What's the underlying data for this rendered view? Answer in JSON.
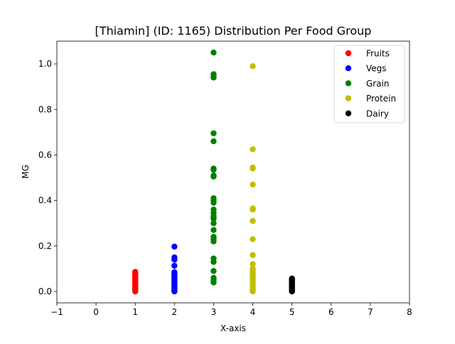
{
  "chart_data": {
    "type": "scatter",
    "title": "[Thiamin] (ID: 1165) Distribution Per Food Group",
    "xlabel": "X-axis",
    "ylabel": "MG",
    "xlim": [
      -1,
      8
    ],
    "ylim": [
      -0.05,
      1.1
    ],
    "x_ticks": [
      "−1",
      "0",
      "1",
      "2",
      "3",
      "4",
      "5",
      "6",
      "7",
      "8"
    ],
    "y_ticks": [
      "0.0",
      "0.2",
      "0.4",
      "0.6",
      "0.8",
      "1.0"
    ],
    "grid": false,
    "legend_position": "top-right",
    "series": [
      {
        "name": "Fruits",
        "color": "#ff0000",
        "x": 1,
        "values": [
          0.0,
          0.003,
          0.006,
          0.01,
          0.013,
          0.016,
          0.02,
          0.023,
          0.027,
          0.03,
          0.034,
          0.037,
          0.04,
          0.044,
          0.048,
          0.051,
          0.055,
          0.058,
          0.062,
          0.066,
          0.07,
          0.074,
          0.078,
          0.082,
          0.086
        ]
      },
      {
        "name": "Vegs",
        "color": "#0000ff",
        "x": 2,
        "values": [
          0.0,
          0.003,
          0.007,
          0.012,
          0.018,
          0.025,
          0.03,
          0.035,
          0.04,
          0.045,
          0.05,
          0.055,
          0.06,
          0.066,
          0.072,
          0.078,
          0.085,
          0.113,
          0.14,
          0.15,
          0.197
        ]
      },
      {
        "name": "Grain",
        "color": "#008000",
        "x": 3,
        "values": [
          0.04,
          0.05,
          0.06,
          0.09,
          0.13,
          0.145,
          0.22,
          0.23,
          0.24,
          0.27,
          0.3,
          0.32,
          0.33,
          0.345,
          0.36,
          0.39,
          0.4,
          0.41,
          0.505,
          0.51,
          0.535,
          0.54,
          0.66,
          0.695,
          0.94,
          0.945,
          0.955,
          1.05
        ]
      },
      {
        "name": "Protein",
        "color": "#bfbf00",
        "x": 4,
        "values": [
          0.0,
          0.01,
          0.02,
          0.03,
          0.04,
          0.05,
          0.06,
          0.07,
          0.08,
          0.09,
          0.1,
          0.12,
          0.16,
          0.23,
          0.31,
          0.36,
          0.365,
          0.47,
          0.54,
          0.545,
          0.625,
          0.99
        ]
      },
      {
        "name": "Dairy",
        "color": "#000000",
        "x": 5,
        "values": [
          0.0,
          0.003,
          0.006,
          0.01,
          0.014,
          0.018,
          0.022,
          0.026,
          0.03,
          0.034,
          0.038,
          0.042,
          0.046,
          0.05,
          0.054,
          0.057
        ]
      }
    ]
  }
}
